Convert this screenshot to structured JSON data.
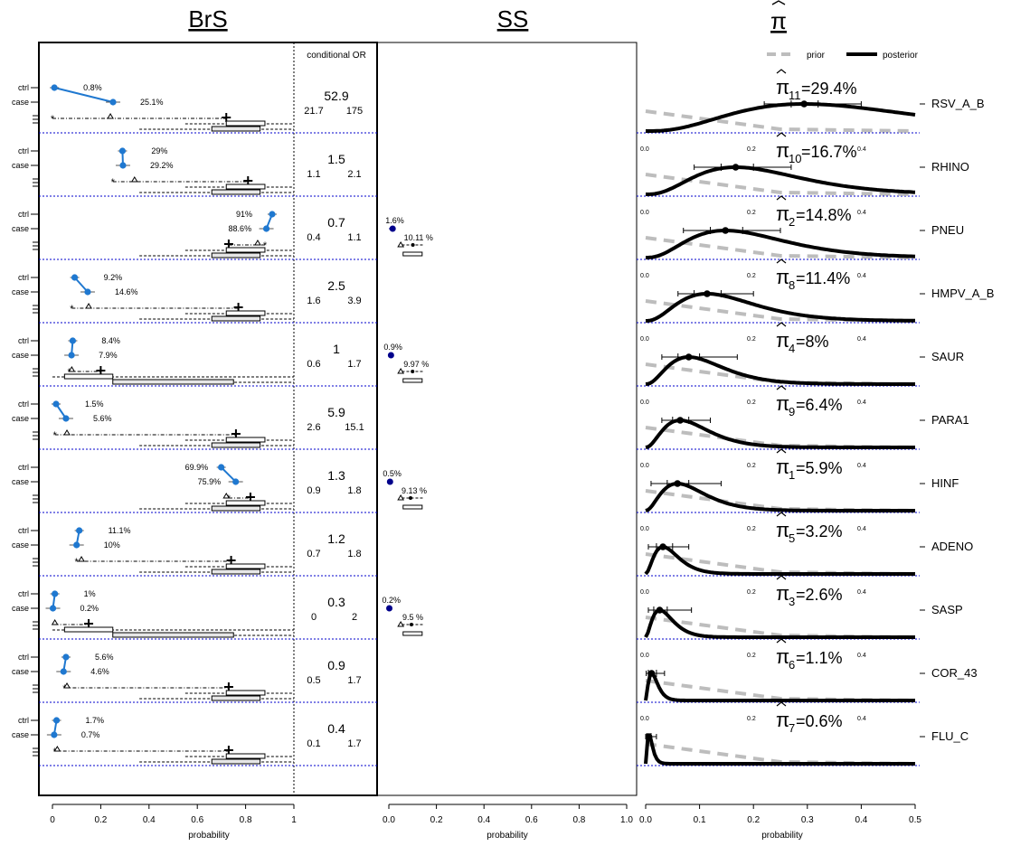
{
  "panels": {
    "brs": {
      "title": "BrS",
      "header": "conditional OR",
      "xlabel": "probability",
      "ticks": [
        "0",
        "0.2",
        "0.4",
        "0.6",
        "0.8",
        "1"
      ]
    },
    "ss": {
      "title": "SS",
      "xlabel": "probability",
      "ticks": [
        "0.0",
        "0.2",
        "0.4",
        "0.6",
        "0.8",
        "1.0"
      ]
    },
    "pi": {
      "title": "π",
      "xlabel": "probability",
      "ticks": [
        "0.0",
        "0.1",
        "0.2",
        "0.3",
        "0.4",
        "0.5"
      ]
    }
  },
  "legend": {
    "prior": "prior",
    "posterior": "posterior"
  },
  "row_labels": {
    "ctrl": "ctrl",
    "case": "case"
  },
  "mini_ticks": {
    "a": "0.0",
    "b": "0.2",
    "c": "0.4"
  },
  "colors": {
    "brs_line": "#1f78d0",
    "ss_point": "#00008b",
    "prior": "#bdbdbd",
    "posterior": "#000000",
    "separator": "#0000cc"
  },
  "chart_data": {
    "type": "composite",
    "rows": [
      {
        "name": "RSV_A_B",
        "idx": "11",
        "ctrl": 0.8,
        "case": 25.1,
        "ctrl_label": "0.8%",
        "case_label": "25.1%",
        "or": "52.9",
        "or_lo": "21.7",
        "or_hi": "175",
        "star": 0.0,
        "tri": 0.24,
        "plus": 0.72,
        "pi": 29.4,
        "pi_label": "=29.4%",
        "ci_in": [
          0.27,
          0.32
        ],
        "ci_out": [
          0.22,
          0.4
        ],
        "mini": false
      },
      {
        "name": "RHINO",
        "idx": "10",
        "ctrl": 29,
        "case": 29.2,
        "ctrl_label": "29%",
        "case_label": "29.2%",
        "or": "1.5",
        "or_lo": "1.1",
        "or_hi": "2.1",
        "star": 0.25,
        "tri": 0.34,
        "plus": 0.81,
        "pi": 16.7,
        "pi_label": "=16.7%",
        "ci_in": [
          0.14,
          0.2
        ],
        "ci_out": [
          0.09,
          0.27
        ],
        "mini": true
      },
      {
        "name": "PNEU",
        "idx": "2",
        "ctrl": 91,
        "case": 88.6,
        "ctrl_label": "91%",
        "case_label": "88.6%",
        "or": "0.7",
        "or_lo": "0.4",
        "or_hi": "1.1",
        "star": 0.88,
        "tri": 0.85,
        "plus": 0.73,
        "pi": 14.8,
        "pi_label": "=14.8%",
        "ci_in": [
          0.12,
          0.18
        ],
        "ci_out": [
          0.07,
          0.25
        ],
        "mini": true,
        "ss": {
          "pos": 1.6,
          "pos_label": "1.6%",
          "prior": 10.11,
          "prior_label": "10.11 %"
        }
      },
      {
        "name": "HMPV_A_B",
        "idx": "8",
        "ctrl": 9.2,
        "case": 14.6,
        "ctrl_label": "9.2%",
        "case_label": "14.6%",
        "or": "2.5",
        "or_lo": "1.6",
        "or_hi": "3.9",
        "star": 0.08,
        "tri": 0.15,
        "plus": 0.77,
        "pi": 11.4,
        "pi_label": "=11.4%",
        "ci_in": [
          0.09,
          0.14
        ],
        "ci_out": [
          0.06,
          0.2
        ],
        "mini": true
      },
      {
        "name": "SAUR",
        "idx": "4",
        "ctrl": 8.4,
        "case": 7.9,
        "ctrl_label": "8.4%",
        "case_label": "7.9%",
        "or": "1",
        "or_lo": "0.6",
        "or_hi": "1.7",
        "star": 0.07,
        "tri": 0.08,
        "plus": 0.2,
        "pi": 8,
        "pi_label": " =8%",
        "ci_in": [
          0.06,
          0.1
        ],
        "ci_out": [
          0.03,
          0.17
        ],
        "mini": true,
        "ss": {
          "pos": 0.9,
          "pos_label": "0.9%",
          "prior": 9.97,
          "prior_label": "9.97 %"
        }
      },
      {
        "name": "PARA1",
        "idx": "9",
        "ctrl": 1.5,
        "case": 5.6,
        "ctrl_label": "1.5%",
        "case_label": "5.6%",
        "or": "5.9",
        "or_lo": "2.6",
        "or_hi": "15.1",
        "star": 0.01,
        "tri": 0.06,
        "plus": 0.76,
        "pi": 6.4,
        "pi_label": "=6.4%",
        "ci_in": [
          0.05,
          0.08
        ],
        "ci_out": [
          0.03,
          0.12
        ],
        "mini": true
      },
      {
        "name": "HINF",
        "idx": "1",
        "ctrl": 69.9,
        "case": 75.9,
        "ctrl_label": "69.9%",
        "case_label": "75.9%",
        "or": "1.3",
        "or_lo": "0.9",
        "or_hi": "1.8",
        "star": 0.73,
        "tri": 0.72,
        "plus": 0.82,
        "pi": 5.9,
        "pi_label": "=5.9%",
        "ci_in": [
          0.04,
          0.08
        ],
        "ci_out": [
          0.01,
          0.14
        ],
        "mini": true,
        "ss": {
          "pos": 0.5,
          "pos_label": "0.5%",
          "prior": 9.13,
          "prior_label": "9.13 %"
        }
      },
      {
        "name": "ADENO",
        "idx": "5",
        "ctrl": 11.1,
        "case": 10,
        "ctrl_label": "11.1%",
        "case_label": "10%",
        "or": "1.2",
        "or_lo": "0.7",
        "or_hi": "1.8",
        "star": 0.1,
        "tri": 0.12,
        "plus": 0.74,
        "pi": 3.2,
        "pi_label": "=3.2%",
        "ci_in": [
          0.02,
          0.05
        ],
        "ci_out": [
          0.005,
          0.08
        ],
        "mini": true
      },
      {
        "name": "SASP",
        "idx": "3",
        "ctrl": 1,
        "case": 0.2,
        "ctrl_label": "1%",
        "case_label": "0.2%",
        "or": "0.3",
        "or_lo": "0",
        "or_hi": "2",
        "star": 0.01,
        "tri": 0.01,
        "plus": 0.15,
        "pi": 2.6,
        "pi_label": "=2.6%",
        "ci_in": [
          0.015,
          0.04
        ],
        "ci_out": [
          0.005,
          0.085
        ],
        "mini": true,
        "ss": {
          "pos": 0.2,
          "pos_label": "0.2%",
          "prior": 9.5,
          "prior_label": "9.5 %"
        }
      },
      {
        "name": "COR_43",
        "idx": "6",
        "ctrl": 5.6,
        "case": 4.6,
        "ctrl_label": "5.6%",
        "case_label": "4.6%",
        "or": "0.9",
        "or_lo": "0.5",
        "or_hi": "1.7",
        "star": 0.05,
        "tri": 0.06,
        "plus": 0.73,
        "pi": 1.1,
        "pi_label": "=1.1%",
        "ci_in": [
          0.005,
          0.02
        ],
        "ci_out": [
          0.001,
          0.035
        ],
        "mini": true
      },
      {
        "name": "FLU_C",
        "idx": "7",
        "ctrl": 1.7,
        "case": 0.7,
        "ctrl_label": "1.7%",
        "case_label": "0.7%",
        "or": "0.4",
        "or_lo": "0.1",
        "or_hi": "1.7",
        "star": 0.01,
        "tri": 0.02,
        "plus": 0.73,
        "pi": 0.6,
        "pi_label": "=0.6%",
        "ci_in": [
          0.002,
          0.01
        ],
        "ci_out": [
          0.0,
          0.02
        ],
        "mini": true
      }
    ],
    "brs_xlim": [
      0,
      1
    ],
    "ss_xlim": [
      0,
      1
    ],
    "pi_xlim": [
      0,
      0.5
    ]
  }
}
